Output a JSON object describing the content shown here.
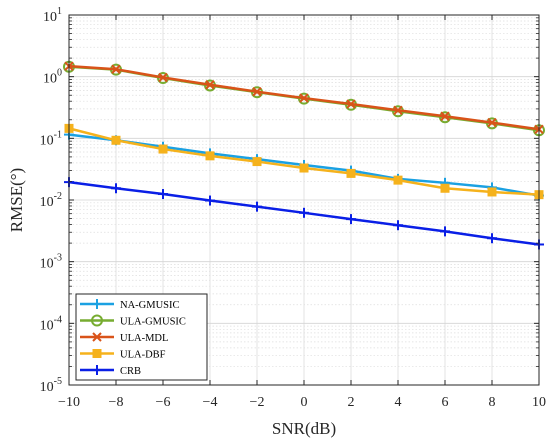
{
  "chart_data": {
    "type": "line",
    "xlabel": "SNR(dB)",
    "ylabel": "RMSE(°)",
    "xlim": [
      -10,
      10
    ],
    "ylim": [
      1e-05,
      10
    ],
    "yscale": "log",
    "grid": true,
    "legend_position": "bottom-left",
    "x": [
      -10,
      -8,
      -6,
      -4,
      -2,
      0,
      2,
      4,
      6,
      8,
      10
    ],
    "x_ticks": [
      "−10",
      "−8",
      "−6",
      "−4",
      "−2",
      "0",
      "2",
      "4",
      "6",
      "8",
      "10"
    ],
    "y_ticks": [
      {
        "base": "10",
        "exp": "1",
        "value": 10
      },
      {
        "base": "10",
        "exp": "0",
        "value": 1
      },
      {
        "base": "10",
        "exp": "-1",
        "value": 0.1
      },
      {
        "base": "10",
        "exp": "-2",
        "value": 0.01
      },
      {
        "base": "10",
        "exp": "-3",
        "value": 0.001
      },
      {
        "base": "10",
        "exp": "-4",
        "value": 0.0001
      },
      {
        "base": "10",
        "exp": "-5",
        "value": 1e-05
      }
    ],
    "series": [
      {
        "name": "NA-GMUSIC",
        "color": "#1ba1e2",
        "marker": "plus",
        "values": [
          0.115,
          0.093,
          0.073,
          0.057,
          0.046,
          0.037,
          0.03,
          0.022,
          0.019,
          0.016,
          0.0118
        ]
      },
      {
        "name": "ULA-GMUSIC",
        "color": "#77ac30",
        "marker": "circle",
        "values": [
          1.45,
          1.3,
          0.95,
          0.72,
          0.56,
          0.44,
          0.35,
          0.275,
          0.22,
          0.175,
          0.135
        ]
      },
      {
        "name": "ULA-MDL",
        "color": "#d95319",
        "marker": "x",
        "values": [
          1.48,
          1.32,
          0.97,
          0.74,
          0.57,
          0.45,
          0.36,
          0.285,
          0.228,
          0.18,
          0.14
        ]
      },
      {
        "name": "ULA-DBF",
        "color": "#f5b21c",
        "marker": "square",
        "values": [
          0.145,
          0.093,
          0.067,
          0.052,
          0.042,
          0.033,
          0.027,
          0.021,
          0.0155,
          0.0135,
          0.0122
        ]
      },
      {
        "name": "CRB",
        "color": "#0a1fe6",
        "marker": "plus",
        "values": [
          0.0195,
          0.0155,
          0.0125,
          0.0098,
          0.0078,
          0.0062,
          0.0049,
          0.0039,
          0.0031,
          0.0024,
          0.0019
        ]
      }
    ]
  }
}
